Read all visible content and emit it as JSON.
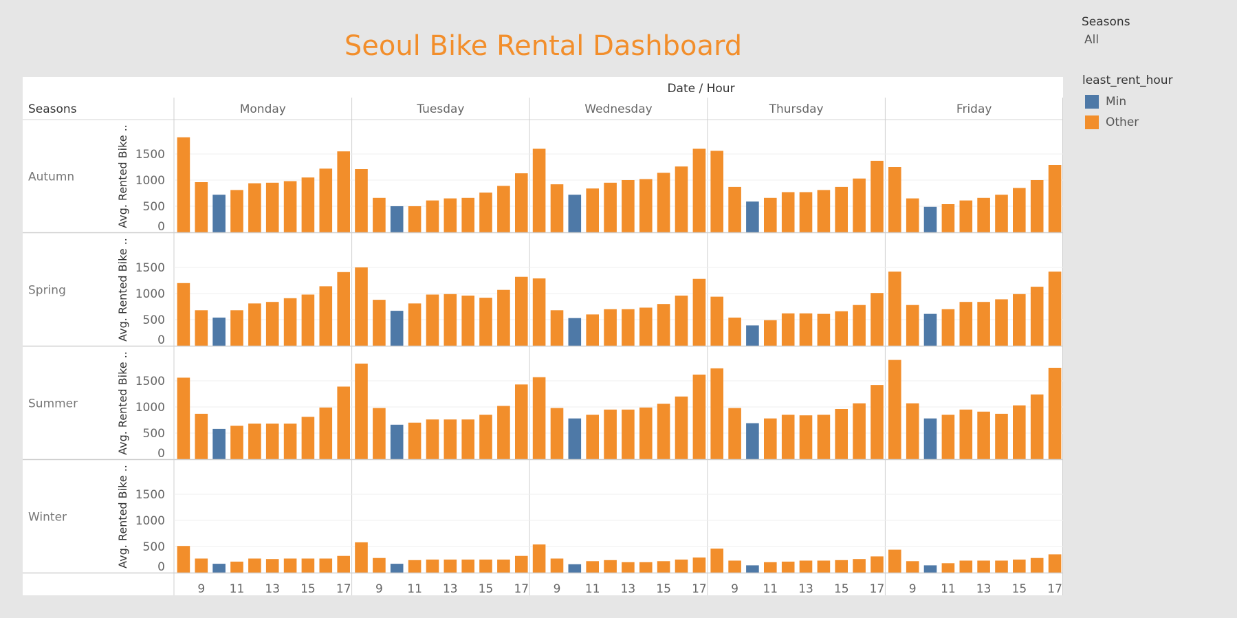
{
  "dashboard": {
    "title": "Seoul Bike Rental Dashboard"
  },
  "filter": {
    "title": "Seasons",
    "value": "All"
  },
  "legend": {
    "title": "least_rent_hour",
    "items": [
      {
        "label": "Min",
        "color": "#4e79a7"
      },
      {
        "label": "Other",
        "color": "#f28e2b"
      }
    ]
  },
  "chart_data": {
    "type": "bar",
    "column_header": "Date / Hour",
    "row_header": "Seasons",
    "ylabel": "Avg. Rented Bike ..",
    "ylim": [
      0,
      2000
    ],
    "yticks": [
      0,
      500,
      1000,
      1500
    ],
    "grid": true,
    "colors": {
      "Min": "#4e79a7",
      "Other": "#f28e2b"
    },
    "hours": [
      8,
      9,
      10,
      11,
      12,
      13,
      14,
      15,
      16,
      17
    ],
    "xtick_labels": [
      "9",
      "11",
      "13",
      "15",
      "17"
    ],
    "days": [
      "Monday",
      "Tuesday",
      "Wednesday",
      "Thursday",
      "Friday"
    ],
    "seasons": [
      "Autumn",
      "Spring",
      "Summer",
      "Winter"
    ],
    "values": {
      "Autumn": {
        "Monday": [
          1820,
          960,
          720,
          810,
          940,
          950,
          980,
          1050,
          1220,
          1550
        ],
        "Tuesday": [
          1210,
          660,
          500,
          500,
          610,
          650,
          660,
          760,
          890,
          1130
        ],
        "Wednesday": [
          1600,
          920,
          720,
          840,
          950,
          1000,
          1020,
          1140,
          1260,
          1600
        ],
        "Thursday": [
          1560,
          870,
          590,
          660,
          770,
          770,
          810,
          870,
          1030,
          1370
        ],
        "Friday": [
          1250,
          650,
          490,
          540,
          610,
          660,
          720,
          850,
          1000,
          1290
        ]
      },
      "Spring": {
        "Monday": [
          1200,
          680,
          540,
          680,
          810,
          840,
          910,
          980,
          1140,
          1410
        ],
        "Tuesday": [
          1500,
          880,
          670,
          810,
          980,
          990,
          960,
          920,
          1070,
          1320
        ],
        "Wednesday": [
          1290,
          680,
          530,
          600,
          700,
          700,
          730,
          800,
          960,
          1280
        ],
        "Thursday": [
          940,
          540,
          390,
          490,
          620,
          620,
          610,
          660,
          780,
          1010
        ],
        "Friday": [
          1420,
          780,
          610,
          700,
          840,
          840,
          890,
          990,
          1130,
          1420
        ]
      },
      "Summer": {
        "Monday": [
          1560,
          870,
          580,
          640,
          680,
          680,
          680,
          810,
          990,
          1390
        ],
        "Tuesday": [
          1830,
          980,
          660,
          700,
          760,
          760,
          760,
          850,
          1020,
          1430
        ],
        "Wednesday": [
          1570,
          980,
          780,
          850,
          950,
          950,
          990,
          1060,
          1200,
          1620
        ],
        "Thursday": [
          1740,
          980,
          690,
          780,
          850,
          840,
          850,
          960,
          1070,
          1420
        ],
        "Friday": [
          1900,
          1070,
          780,
          850,
          950,
          910,
          870,
          1030,
          1240,
          1750
        ]
      },
      "Winter": {
        "Monday": [
          510,
          270,
          170,
          210,
          270,
          260,
          270,
          270,
          270,
          320
        ],
        "Tuesday": [
          580,
          280,
          170,
          240,
          250,
          250,
          250,
          250,
          250,
          320
        ],
        "Wednesday": [
          540,
          270,
          160,
          220,
          240,
          200,
          200,
          220,
          250,
          290
        ],
        "Thursday": [
          460,
          230,
          140,
          200,
          210,
          230,
          230,
          240,
          260,
          310
        ],
        "Friday": [
          440,
          220,
          140,
          180,
          230,
          230,
          230,
          250,
          280,
          350
        ]
      }
    },
    "min_hour_index": 2
  }
}
